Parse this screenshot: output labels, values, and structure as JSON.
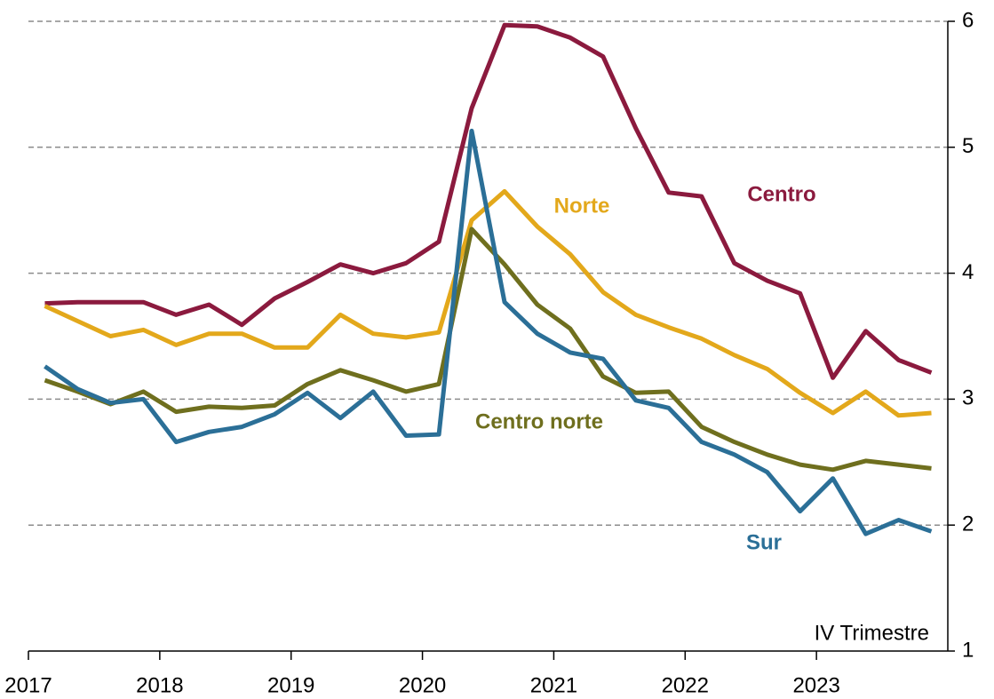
{
  "chart_data": {
    "type": "line",
    "annotations": [
      "IV Trimestre"
    ],
    "x": [
      2017.125,
      2017.375,
      2017.625,
      2017.875,
      2018.125,
      2018.375,
      2018.625,
      2018.875,
      2019.125,
      2019.375,
      2019.625,
      2019.875,
      2020.125,
      2020.375,
      2020.625,
      2020.875,
      2021.125,
      2021.375,
      2021.625,
      2021.875,
      2022.125,
      2022.375,
      2022.625,
      2022.875,
      2023.125,
      2023.375,
      2023.625,
      2023.875
    ],
    "xlim": [
      2017,
      2024
    ],
    "xticks": [
      2017,
      2018,
      2019,
      2020,
      2021,
      2022,
      2023
    ],
    "ylim": [
      1,
      6
    ],
    "yticks": [
      1,
      2,
      3,
      4,
      5,
      6
    ],
    "grid": true,
    "y_axis_side": "right",
    "series": [
      {
        "name": "Centro",
        "color": "#8b1a3e",
        "values": [
          3.76,
          3.77,
          3.77,
          3.77,
          3.67,
          3.75,
          3.59,
          3.8,
          3.93,
          4.07,
          4.0,
          4.08,
          4.25,
          5.31,
          5.97,
          5.96,
          5.87,
          5.72,
          5.15,
          4.64,
          4.61,
          4.08,
          3.94,
          3.84,
          3.17,
          3.54,
          3.31,
          3.21
        ]
      },
      {
        "name": "Norte",
        "color": "#e3a81b",
        "values": [
          3.74,
          3.62,
          3.5,
          3.55,
          3.43,
          3.52,
          3.52,
          3.41,
          3.41,
          3.67,
          3.52,
          3.49,
          3.53,
          4.42,
          4.65,
          4.37,
          4.15,
          3.85,
          3.67,
          3.57,
          3.48,
          3.35,
          3.24,
          3.05,
          2.89,
          3.06,
          2.87,
          2.89
        ]
      },
      {
        "name": "Centro norte",
        "color": "#6f6f1e",
        "values": [
          3.15,
          3.06,
          2.96,
          3.06,
          2.9,
          2.94,
          2.93,
          2.95,
          3.12,
          3.23,
          3.15,
          3.06,
          3.12,
          4.35,
          4.07,
          3.75,
          3.56,
          3.18,
          3.05,
          3.06,
          2.78,
          2.66,
          2.56,
          2.48,
          2.44,
          2.51,
          2.48,
          2.45
        ]
      },
      {
        "name": "Sur",
        "color": "#2b6f97",
        "values": [
          3.26,
          3.08,
          2.97,
          3.0,
          2.66,
          2.74,
          2.78,
          2.88,
          3.05,
          2.85,
          3.06,
          2.71,
          2.72,
          5.13,
          3.77,
          3.52,
          3.37,
          3.32,
          2.99,
          2.93,
          2.66,
          2.56,
          2.42,
          2.11,
          2.37,
          1.93,
          2.04,
          1.95
        ]
      }
    ]
  }
}
